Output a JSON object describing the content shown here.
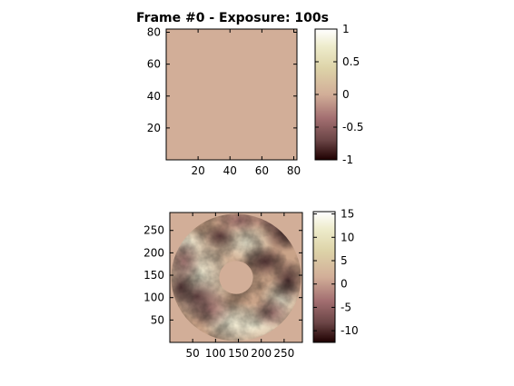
{
  "chart_data": [
    {
      "type": "heatmap",
      "title": "Frame #0 - Exposure: 100s",
      "xlabel": "",
      "ylabel": "",
      "xlim": [
        0,
        82
      ],
      "ylim": [
        0,
        82
      ],
      "x_ticks": [
        "20",
        "40",
        "60",
        "80"
      ],
      "y_ticks": [
        "20",
        "40",
        "60",
        "80"
      ],
      "colormap": "pink",
      "fill_value": 0,
      "fill_color": "#d2ae98",
      "colorbar": {
        "range": [
          -1,
          1
        ],
        "ticks": [
          "1",
          "0.5",
          "0",
          "-0.5",
          "-1"
        ]
      }
    },
    {
      "type": "heatmap",
      "title": "",
      "xlabel": "",
      "ylabel": "",
      "xlim": [
        0,
        290
      ],
      "ylim": [
        0,
        290
      ],
      "x_ticks": [
        "50",
        "100",
        "150",
        "200",
        "250"
      ],
      "y_ticks": [
        "50",
        "100",
        "150",
        "200",
        "250"
      ],
      "colormap": "pink",
      "background_color": "#d2ae98",
      "annulus": {
        "center": [
          145,
          145
        ],
        "outer_radius": 142,
        "inner_radius": 37
      },
      "colorbar": {
        "range": [
          -12.5,
          15.5
        ],
        "ticks": [
          "15",
          "10",
          "5",
          "0",
          "-5",
          "-10"
        ]
      }
    }
  ]
}
